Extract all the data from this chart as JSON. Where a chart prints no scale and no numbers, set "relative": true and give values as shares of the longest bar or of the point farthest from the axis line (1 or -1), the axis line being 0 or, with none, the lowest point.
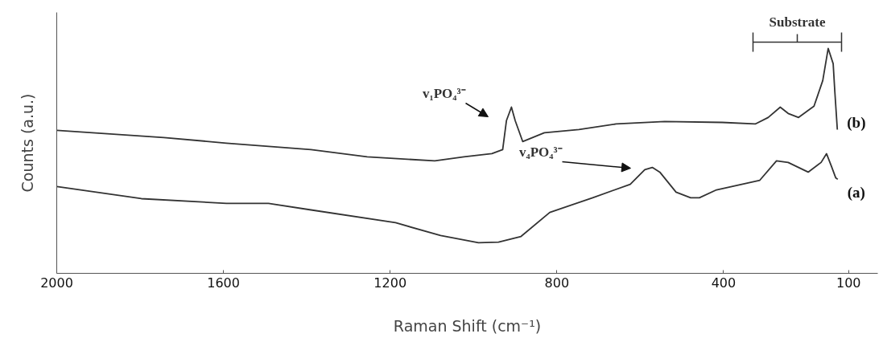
{
  "chart_data": {
    "type": "line",
    "relative": true,
    "xlabel": "Raman Shift (cm⁻¹)",
    "ylabel": "Counts (a.u.)",
    "xlim": [
      2000,
      30
    ],
    "xticks": [
      2000,
      1600,
      1200,
      800,
      400,
      100
    ],
    "grid": false,
    "legend": false,
    "marker": "none",
    "line_style": "solid",
    "series": [
      {
        "name": "(b)",
        "color": "#333333",
        "x": [
          2000,
          1743,
          1593,
          1390,
          1255,
          1093,
          1023,
          956,
          930,
          921,
          909,
          900,
          882,
          830,
          747,
          658,
          541,
          403,
          324,
          293,
          264,
          245,
          220,
          183,
          162,
          149,
          137,
          133,
          127
        ],
        "values": [
          0.636,
          0.604,
          0.579,
          0.55,
          0.518,
          0.5,
          0.518,
          0.532,
          0.55,
          0.679,
          0.739,
          0.679,
          0.586,
          0.625,
          0.639,
          0.664,
          0.675,
          0.671,
          0.664,
          0.693,
          0.739,
          0.711,
          0.693,
          0.743,
          0.857,
          1,
          0.932,
          0.807,
          0.639
        ]
      },
      {
        "name": "(a)",
        "color": "#333333",
        "x": [
          2000,
          1797,
          1593,
          1492,
          1390,
          1187,
          1079,
          988,
          940,
          886,
          817,
          714,
          624,
          589,
          571,
          553,
          514,
          479,
          458,
          417,
          313,
          273,
          245,
          197,
          166,
          153,
          141,
          131,
          126
        ],
        "values": [
          0.386,
          0.332,
          0.311,
          0.311,
          0.282,
          0.225,
          0.168,
          0.136,
          0.139,
          0.164,
          0.271,
          0.336,
          0.396,
          0.461,
          0.471,
          0.45,
          0.361,
          0.336,
          0.336,
          0.371,
          0.414,
          0.5,
          0.493,
          0.45,
          0.493,
          0.532,
          0.475,
          0.425,
          0.418
        ]
      }
    ],
    "annotations": [
      "v₁PO₄³⁻",
      "v₄PO₄³⁻",
      "Substrate"
    ]
  }
}
